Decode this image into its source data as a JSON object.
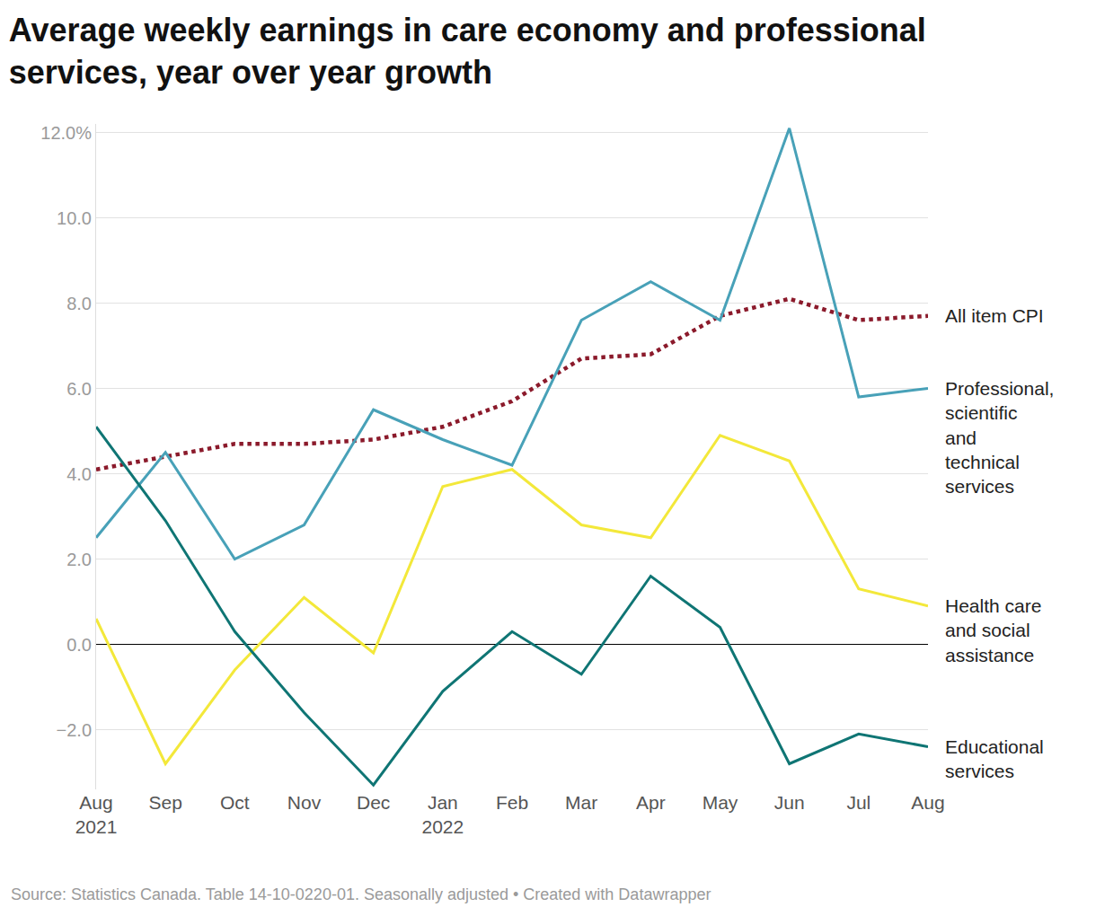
{
  "chart_data": {
    "type": "line",
    "title": "Average weekly earnings in care economy and professional services, year over year growth",
    "source": "Source: Statistics Canada. Table 14-10-0220-01. Seasonally adjusted • Created with Datawrapper",
    "categories": [
      "Aug 2021",
      "Sep",
      "Oct",
      "Nov",
      "Dec",
      "Jan 2022",
      "Feb",
      "Mar",
      "Apr",
      "May",
      "Jun",
      "Jul",
      "Aug"
    ],
    "series": [
      {
        "name": "All item CPI",
        "color": "#8b1a2b",
        "line_style": "dotted",
        "values": [
          4.1,
          4.4,
          4.7,
          4.7,
          4.8,
          5.1,
          5.7,
          6.7,
          6.8,
          7.7,
          8.1,
          7.6,
          7.7
        ]
      },
      {
        "name": "Professional, scientific and technical services",
        "color": "#48a1b8",
        "line_style": "solid",
        "values": [
          2.5,
          4.5,
          2.0,
          2.8,
          5.5,
          4.8,
          4.2,
          7.6,
          8.5,
          7.6,
          12.1,
          5.8,
          6.0
        ]
      },
      {
        "name": "Health care and social assistance",
        "color": "#f3e83a",
        "line_style": "solid",
        "values": [
          0.6,
          -2.8,
          -0.6,
          1.1,
          -0.2,
          3.7,
          4.1,
          2.8,
          2.5,
          4.9,
          4.3,
          1.3,
          0.9
        ]
      },
      {
        "name": "Educational services",
        "color": "#0f7574",
        "line_style": "solid",
        "values": [
          5.1,
          2.9,
          0.3,
          -1.6,
          -3.3,
          -1.1,
          0.3,
          -0.7,
          1.6,
          0.4,
          -2.8,
          -2.1,
          -2.4
        ]
      }
    ],
    "ylim": [
      -3.4,
      12.2
    ],
    "yticks": [
      {
        "value": -2,
        "label": "−2.0"
      },
      {
        "value": 0,
        "label": "0.0"
      },
      {
        "value": 2,
        "label": "2.0"
      },
      {
        "value": 4,
        "label": "4.0"
      },
      {
        "value": 6,
        "label": "6.0"
      },
      {
        "value": 8,
        "label": "8.0"
      },
      {
        "value": 10,
        "label": "10.0"
      },
      {
        "value": 12,
        "label": "12.0%"
      }
    ],
    "grid": true
  }
}
